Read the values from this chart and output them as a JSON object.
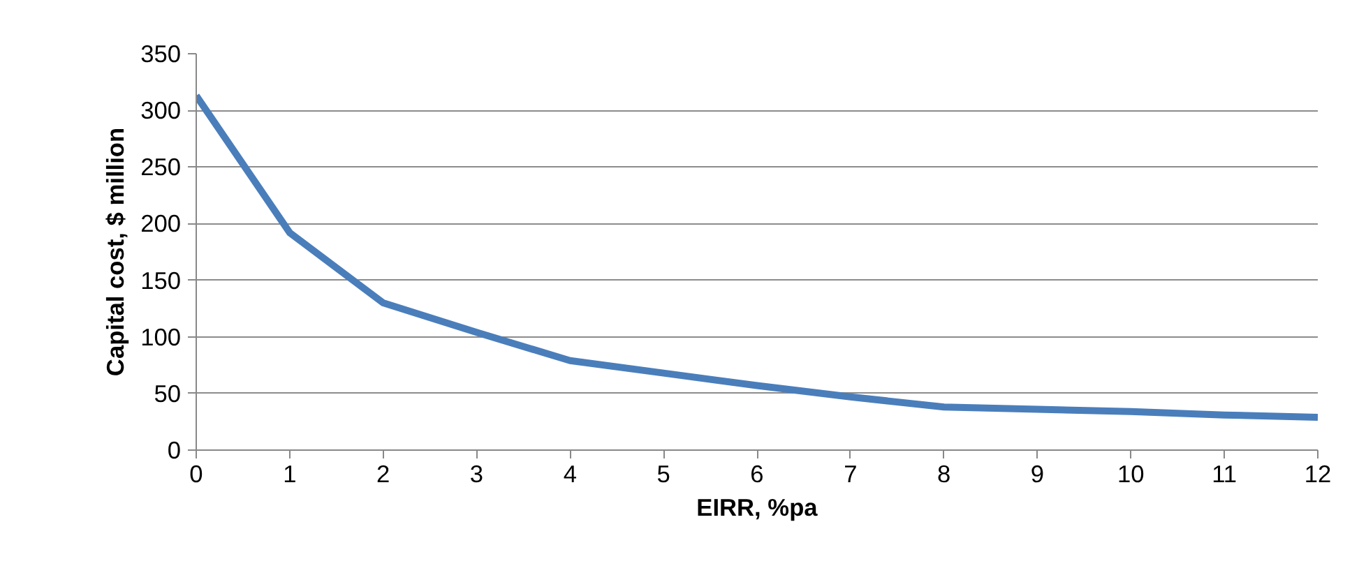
{
  "chart_data": {
    "type": "line",
    "xlabel": "EIRR, %pa",
    "ylabel": "Capital cost, $ million",
    "x": [
      0,
      1,
      2,
      3,
      4,
      5,
      6,
      7,
      8,
      9,
      10,
      11,
      12
    ],
    "series": [
      {
        "color": "#4a7ebb",
        "values": [
          313,
          192,
          130,
          104,
          79,
          68,
          57,
          47,
          38,
          36,
          34,
          31,
          29
        ]
      }
    ],
    "xlim": [
      0,
      12
    ],
    "xticks": [
      0,
      1,
      2,
      3,
      4,
      5,
      6,
      7,
      8,
      9,
      10,
      11,
      12
    ],
    "ylim": [
      0,
      350
    ],
    "yticks": [
      0,
      50,
      100,
      150,
      200,
      250,
      300,
      350
    ],
    "grid": "y",
    "marker": "none",
    "line_style": "solid"
  }
}
